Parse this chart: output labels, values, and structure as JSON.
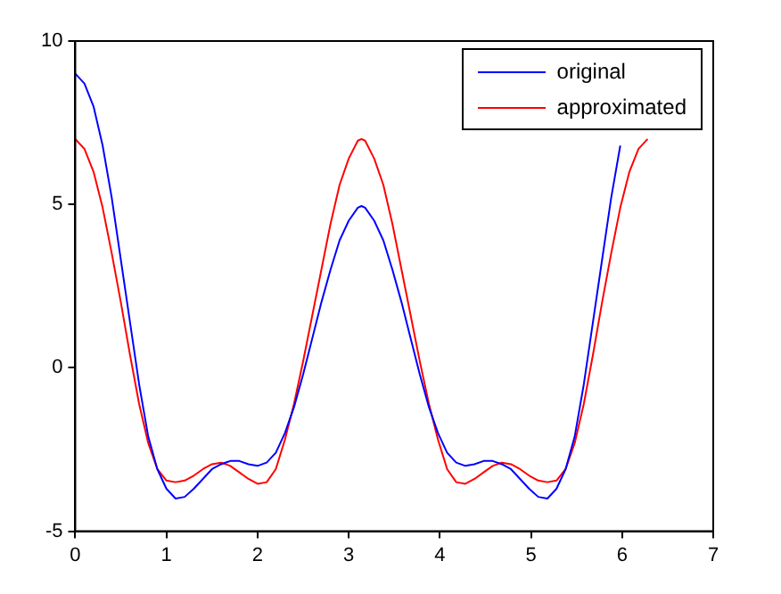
{
  "chart_data": {
    "type": "line",
    "x": [
      0,
      0.1,
      0.2,
      0.3,
      0.4,
      0.5,
      0.6,
      0.7,
      0.8,
      0.9,
      1.0,
      1.1,
      1.2,
      1.3,
      1.4,
      1.5,
      1.6,
      1.7,
      1.8,
      1.9,
      2.0,
      2.1,
      2.2,
      2.3,
      2.4,
      2.5,
      2.6,
      2.7,
      2.8,
      2.9,
      3.0,
      3.1,
      3.14,
      3.18,
      3.28,
      3.38,
      3.48,
      3.58,
      3.68,
      3.78,
      3.88,
      3.98,
      4.08,
      4.18,
      4.28,
      4.38,
      4.48,
      4.58,
      4.68,
      4.78,
      4.88,
      4.98,
      5.08,
      5.18,
      5.28,
      5.38,
      5.48,
      5.58,
      5.68,
      5.78,
      5.88,
      5.98,
      6.08,
      6.18,
      6.28
    ],
    "series": [
      {
        "name": "original",
        "color": "#0000ff",
        "values": [
          9,
          8.7,
          8.0,
          6.8,
          5.2,
          3.3,
          1.4,
          -0.5,
          -2.1,
          -3.1,
          -3.7,
          -4.0,
          -3.95,
          -3.7,
          -3.4,
          -3.1,
          -2.95,
          -2.85,
          -2.85,
          -2.95,
          -3.0,
          -2.9,
          -2.6,
          -2.0,
          -1.2,
          -0.2,
          0.9,
          2.0,
          3.0,
          3.9,
          4.5,
          4.9,
          4.95,
          4.9,
          4.5,
          3.9,
          3.0,
          2.0,
          0.9,
          -0.2,
          -1.2,
          -2.0,
          -2.6,
          -2.9,
          -3.0,
          -2.95,
          -2.85,
          -2.85,
          -2.95,
          -3.1,
          -3.4,
          -3.7,
          -3.95,
          -4.0,
          -3.7,
          -3.1,
          -2.1,
          -0.5,
          1.4,
          3.3,
          5.2,
          6.8,
          null,
          null,
          null
        ]
      },
      {
        "name": "approximated",
        "color": "#ff0000",
        "values": [
          7.0,
          6.7,
          6.0,
          4.9,
          3.5,
          2.0,
          0.4,
          -1.1,
          -2.3,
          -3.1,
          -3.45,
          -3.5,
          -3.45,
          -3.3,
          -3.1,
          -2.95,
          -2.9,
          -3.0,
          -3.2,
          -3.4,
          -3.55,
          -3.5,
          -3.1,
          -2.2,
          -1.1,
          0.2,
          1.6,
          3.0,
          4.4,
          5.6,
          6.4,
          6.95,
          7.0,
          6.95,
          6.4,
          5.6,
          4.4,
          3.0,
          1.6,
          0.2,
          -1.1,
          -2.2,
          -3.1,
          -3.5,
          -3.55,
          -3.4,
          -3.2,
          -3.0,
          -2.9,
          -2.95,
          -3.1,
          -3.3,
          -3.45,
          -3.5,
          -3.45,
          -3.1,
          -2.3,
          -1.1,
          0.4,
          2.0,
          3.5,
          4.9,
          6.0,
          6.7,
          7.0
        ]
      }
    ],
    "xlim": [
      0,
      7
    ],
    "xticks": [
      0,
      1,
      2,
      3,
      4,
      5,
      6,
      7
    ],
    "ylim": [
      -5,
      10
    ],
    "yticks": [
      -5,
      0,
      5,
      10
    ],
    "grid": false,
    "legend": "top right",
    "marker": "none",
    "line_style": "solid"
  }
}
